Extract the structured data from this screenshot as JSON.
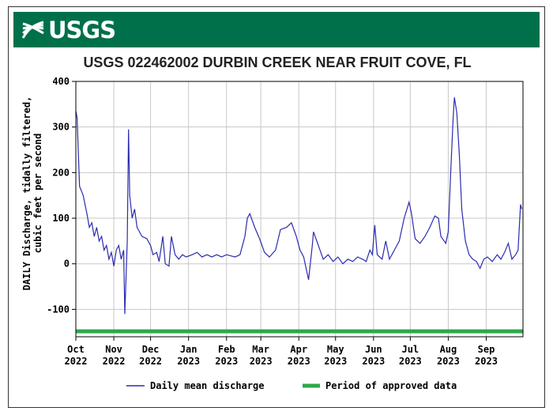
{
  "banner": {
    "logo_text": "USGS",
    "color": "#00704a"
  },
  "chart_data": {
    "type": "line",
    "title": "USGS 022462002 DURBIN CREEK NEAR FRUIT COVE, FL",
    "ylabel_lines": [
      "DAILY Discharge, tidally filtered,",
      "cubic feet per second"
    ],
    "ylim": [
      -160,
      400
    ],
    "yticks": [
      400,
      300,
      200,
      100,
      0,
      -100
    ],
    "xlim": [
      "2022-10-01",
      "2023-09-30"
    ],
    "xticks": [
      {
        "date": "2022-10-01",
        "month": "Oct",
        "year": "2022"
      },
      {
        "date": "2022-11-01",
        "month": "Nov",
        "year": "2022"
      },
      {
        "date": "2022-12-01",
        "month": "Dec",
        "year": "2022"
      },
      {
        "date": "2023-01-01",
        "month": "Jan",
        "year": "2023"
      },
      {
        "date": "2023-02-01",
        "month": "Feb",
        "year": "2023"
      },
      {
        "date": "2023-03-01",
        "month": "Mar",
        "year": "2023"
      },
      {
        "date": "2023-04-01",
        "month": "Apr",
        "year": "2023"
      },
      {
        "date": "2023-05-01",
        "month": "May",
        "year": "2023"
      },
      {
        "date": "2023-06-01",
        "month": "Jun",
        "year": "2023"
      },
      {
        "date": "2023-07-01",
        "month": "Jul",
        "year": "2023"
      },
      {
        "date": "2023-08-01",
        "month": "Aug",
        "year": "2023"
      },
      {
        "date": "2023-09-01",
        "month": "Sep",
        "year": "2023"
      }
    ],
    "grid": true,
    "legend_position": "bottom",
    "series": [
      {
        "name": "Daily mean discharge",
        "color": "#2b2bb0",
        "points": [
          [
            "2022-10-01",
            335
          ],
          [
            "2022-10-02",
            320
          ],
          [
            "2022-10-04",
            170
          ],
          [
            "2022-10-07",
            150
          ],
          [
            "2022-10-10",
            110
          ],
          [
            "2022-10-12",
            80
          ],
          [
            "2022-10-14",
            90
          ],
          [
            "2022-10-16",
            60
          ],
          [
            "2022-10-18",
            80
          ],
          [
            "2022-10-20",
            50
          ],
          [
            "2022-10-22",
            60
          ],
          [
            "2022-10-24",
            30
          ],
          [
            "2022-10-26",
            40
          ],
          [
            "2022-10-28",
            10
          ],
          [
            "2022-10-30",
            25
          ],
          [
            "2022-11-01",
            -5
          ],
          [
            "2022-11-03",
            30
          ],
          [
            "2022-11-05",
            40
          ],
          [
            "2022-11-07",
            10
          ],
          [
            "2022-11-09",
            30
          ],
          [
            "2022-11-10",
            -110
          ],
          [
            "2022-11-12",
            50
          ],
          [
            "2022-11-13",
            295
          ],
          [
            "2022-11-14",
            150
          ],
          [
            "2022-11-16",
            100
          ],
          [
            "2022-11-18",
            120
          ],
          [
            "2022-11-20",
            80
          ],
          [
            "2022-11-24",
            60
          ],
          [
            "2022-11-28",
            55
          ],
          [
            "2022-12-01",
            40
          ],
          [
            "2022-12-03",
            20
          ],
          [
            "2022-12-06",
            25
          ],
          [
            "2022-12-08",
            5
          ],
          [
            "2022-12-11",
            60
          ],
          [
            "2022-12-13",
            0
          ],
          [
            "2022-12-16",
            -5
          ],
          [
            "2022-12-18",
            60
          ],
          [
            "2022-12-21",
            20
          ],
          [
            "2022-12-24",
            10
          ],
          [
            "2022-12-27",
            20
          ],
          [
            "2022-12-30",
            15
          ],
          [
            "2023-01-04",
            20
          ],
          [
            "2023-01-08",
            25
          ],
          [
            "2023-01-12",
            15
          ],
          [
            "2023-01-16",
            20
          ],
          [
            "2023-01-20",
            15
          ],
          [
            "2023-01-24",
            20
          ],
          [
            "2023-01-28",
            15
          ],
          [
            "2023-02-01",
            20
          ],
          [
            "2023-02-08",
            15
          ],
          [
            "2023-02-12",
            20
          ],
          [
            "2023-02-16",
            60
          ],
          [
            "2023-02-18",
            100
          ],
          [
            "2023-02-20",
            110
          ],
          [
            "2023-02-24",
            80
          ],
          [
            "2023-02-28",
            55
          ],
          [
            "2023-03-04",
            25
          ],
          [
            "2023-03-08",
            15
          ],
          [
            "2023-03-13",
            30
          ],
          [
            "2023-03-17",
            75
          ],
          [
            "2023-03-22",
            80
          ],
          [
            "2023-03-26",
            90
          ],
          [
            "2023-03-30",
            60
          ],
          [
            "2023-04-02",
            30
          ],
          [
            "2023-04-05",
            15
          ],
          [
            "2023-04-09",
            -35
          ],
          [
            "2023-04-12",
            40
          ],
          [
            "2023-04-13",
            70
          ],
          [
            "2023-04-17",
            40
          ],
          [
            "2023-04-21",
            10
          ],
          [
            "2023-04-25",
            20
          ],
          [
            "2023-04-29",
            5
          ],
          [
            "2023-05-03",
            15
          ],
          [
            "2023-05-07",
            0
          ],
          [
            "2023-05-11",
            10
          ],
          [
            "2023-05-15",
            5
          ],
          [
            "2023-05-19",
            15
          ],
          [
            "2023-05-23",
            10
          ],
          [
            "2023-05-26",
            5
          ],
          [
            "2023-05-29",
            30
          ],
          [
            "2023-05-31",
            20
          ],
          [
            "2023-06-02",
            85
          ],
          [
            "2023-06-04",
            20
          ],
          [
            "2023-06-08",
            10
          ],
          [
            "2023-06-11",
            50
          ],
          [
            "2023-06-14",
            10
          ],
          [
            "2023-06-18",
            30
          ],
          [
            "2023-06-22",
            50
          ],
          [
            "2023-06-26",
            100
          ],
          [
            "2023-06-30",
            135
          ],
          [
            "2023-07-02",
            110
          ],
          [
            "2023-07-05",
            55
          ],
          [
            "2023-07-09",
            45
          ],
          [
            "2023-07-13",
            60
          ],
          [
            "2023-07-17",
            80
          ],
          [
            "2023-07-21",
            105
          ],
          [
            "2023-07-24",
            100
          ],
          [
            "2023-07-26",
            60
          ],
          [
            "2023-07-30",
            45
          ],
          [
            "2023-08-01",
            70
          ],
          [
            "2023-08-03",
            200
          ],
          [
            "2023-08-05",
            320
          ],
          [
            "2023-08-06",
            365
          ],
          [
            "2023-08-08",
            330
          ],
          [
            "2023-08-10",
            240
          ],
          [
            "2023-08-12",
            120
          ],
          [
            "2023-08-15",
            50
          ],
          [
            "2023-08-18",
            20
          ],
          [
            "2023-08-21",
            10
          ],
          [
            "2023-08-24",
            5
          ],
          [
            "2023-08-27",
            -10
          ],
          [
            "2023-08-30",
            10
          ],
          [
            "2023-09-02",
            15
          ],
          [
            "2023-09-06",
            5
          ],
          [
            "2023-09-10",
            20
          ],
          [
            "2023-09-13",
            10
          ],
          [
            "2023-09-16",
            25
          ],
          [
            "2023-09-19",
            45
          ],
          [
            "2023-09-22",
            10
          ],
          [
            "2023-09-25",
            20
          ],
          [
            "2023-09-27",
            30
          ],
          [
            "2023-09-29",
            130
          ],
          [
            "2023-09-30",
            120
          ]
        ]
      }
    ],
    "approved_band": {
      "name": "Period of approved data",
      "color": "#2ea84a",
      "value": -148
    }
  }
}
